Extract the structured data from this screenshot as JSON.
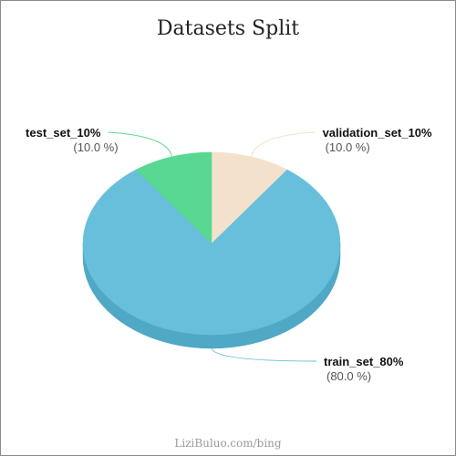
{
  "chart_data": {
    "type": "pie",
    "title": "Datasets Split",
    "slices": [
      {
        "name": "validation_set_10%",
        "value": 10.0,
        "percent_label": "(10.0 %)",
        "color": "#f4e1cc",
        "side_color": "#d9c4ad",
        "leader_color": "#f4e1cc"
      },
      {
        "name": "train_set_80%",
        "value": 80.0,
        "percent_label": "(80.0 %)",
        "color": "#67bfdc",
        "side_color": "#4fa8c5",
        "leader_color": "#67bfdc"
      },
      {
        "name": "test_set_10%",
        "value": 10.0,
        "percent_label": "(10.0 %)",
        "color": "#58d891",
        "side_color": "#3fbf78",
        "leader_color": "#58d891"
      }
    ],
    "start": "top, clockwise",
    "style": "3d-tilted",
    "legend": "none"
  },
  "footer": "LiziBuluo.com/bing"
}
